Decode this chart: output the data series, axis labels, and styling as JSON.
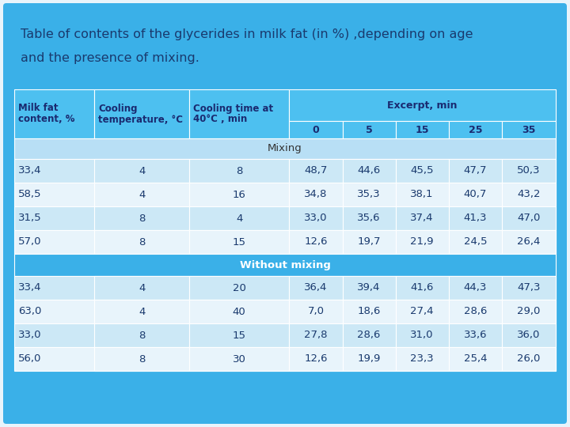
{
  "title_line1": "Table of contents of the glycerides in milk fat (in %) ,depending on age",
  "title_line2": "and the presence of mixing.",
  "title_bg": "#3db0e8",
  "title_color": "#1a3a6e",
  "header_bg": "#4dc0f0",
  "header_color": "#1a2a70",
  "mixing_bg": "#b8dff5",
  "mixing_label": "Mixing",
  "mixing_label_color": "#333333",
  "without_mixing_bg": "#3ab0e8",
  "without_mixing_label": "Without mixing",
  "without_mixing_color": "#ffffff",
  "row_bg_light": "#cce8f6",
  "row_bg_white": "#e8f4fb",
  "data_color": "#1a3a6e",
  "outer_bg": "#3ab0e8",
  "inner_bg": "#e8f4fb",
  "col_headers": [
    "Milk fat\ncontent, %",
    "Cooling\ntemperature, °C",
    "Cooling time at\n40°C , min",
    "0",
    "5",
    "15",
    "25",
    "35"
  ],
  "excerpt_label": "Excerpt, min",
  "mixing_rows": [
    [
      "33,4",
      "4",
      "8",
      "48,7",
      "44,6",
      "45,5",
      "47,7",
      "50,3"
    ],
    [
      "58,5",
      "4",
      "16",
      "34,8",
      "35,3",
      "38,1",
      "40,7",
      "43,2"
    ],
    [
      "31,5",
      "8",
      "4",
      "33,0",
      "35,6",
      "37,4",
      "41,3",
      "47,0"
    ],
    [
      "57,0",
      "8",
      "15",
      "12,6",
      "19,7",
      "21,9",
      "24,5",
      "26,4"
    ]
  ],
  "without_mixing_rows": [
    [
      "33,4",
      "4",
      "20",
      "36,4",
      "39,4",
      "41,6",
      "44,3",
      "47,3"
    ],
    [
      "63,0",
      "4",
      "40",
      "7,0",
      "18,6",
      "27,4",
      "28,6",
      "29,0"
    ],
    [
      "33,0",
      "8",
      "15",
      "27,8",
      "28,6",
      "31,0",
      "33,6",
      "36,0"
    ],
    [
      "56,0",
      "8",
      "30",
      "12,6",
      "19,9",
      "23,3",
      "25,4",
      "26,0"
    ]
  ]
}
